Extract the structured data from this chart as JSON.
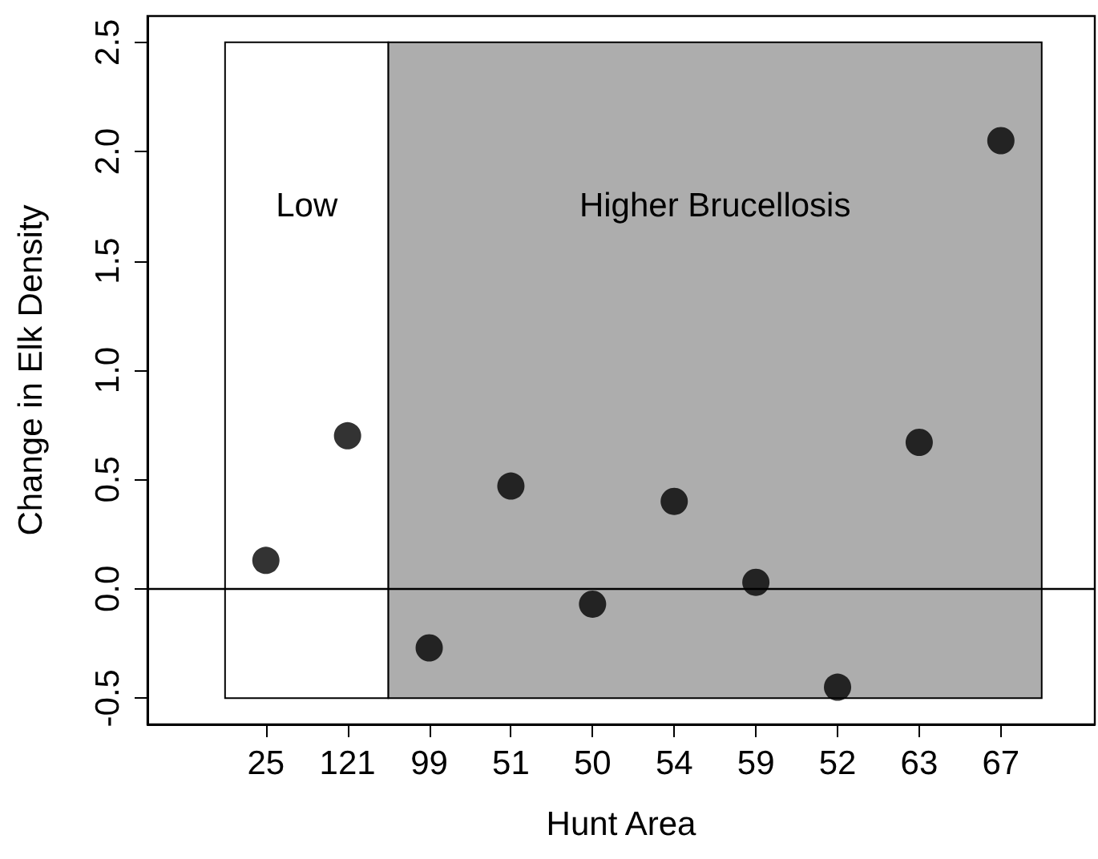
{
  "chart_data": {
    "type": "scatter",
    "xlabel": "Hunt Area",
    "ylabel": "Change in Elk Density",
    "categories": [
      "25",
      "121",
      "99",
      "51",
      "50",
      "54",
      "59",
      "52",
      "63",
      "67"
    ],
    "values": [
      0.13,
      0.7,
      -0.27,
      0.47,
      -0.07,
      0.4,
      0.03,
      -0.45,
      0.67,
      2.05
    ],
    "color": "#000000",
    "marker": "circle",
    "ylim": [
      -0.62,
      2.62
    ],
    "yticks": [
      -0.5,
      {
        "value": 0,
        "label": "0.0"
      },
      0.5,
      {
        "value": 1,
        "label": "1.0"
      },
      1.5,
      {
        "value": 2,
        "label": "2.0"
      },
      2.5
    ],
    "bands": [
      {
        "axis": "x",
        "from": "25",
        "to": "121",
        "label": "Low",
        "color": "#ffffff"
      },
      {
        "axis": "x",
        "from": "99",
        "to": "67",
        "label": "Higher Brucellosis",
        "color": "#adadad"
      }
    ],
    "ref_lines": [
      {
        "axis": "y",
        "value": 0,
        "color": "#000000"
      }
    ],
    "grid": false
  }
}
